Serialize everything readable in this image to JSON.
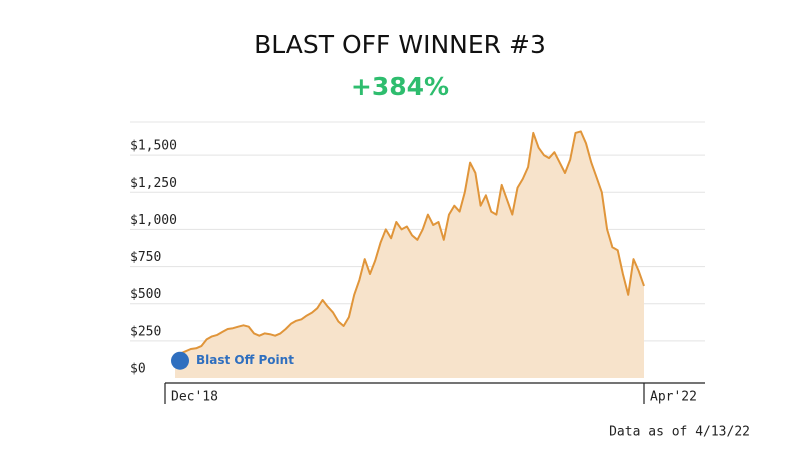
{
  "chart_data": {
    "type": "area",
    "title": "BLAST OFF WINNER #3",
    "subtitle": "+384%",
    "annotation": "Blast Off Point",
    "footnote": "Data as of 4/13/22",
    "categories": [
      "Dec'18",
      null,
      null,
      null,
      null,
      null,
      null,
      null,
      null,
      null,
      null,
      null,
      null,
      null,
      null,
      null,
      null,
      null,
      null,
      null,
      null,
      null,
      null,
      null,
      null,
      null,
      null,
      null,
      null,
      null,
      null,
      null,
      null,
      null,
      null,
      null,
      null,
      null,
      null,
      null,
      null,
      null,
      null,
      null,
      null,
      null,
      null,
      null,
      null,
      null,
      null,
      null,
      null,
      null,
      null,
      null,
      null,
      null,
      null,
      null,
      null,
      null,
      null,
      null,
      null,
      null,
      null,
      null,
      null,
      null,
      null,
      null,
      null,
      null,
      null,
      null,
      null,
      null,
      null,
      null,
      null,
      null,
      null,
      null,
      null,
      null,
      null,
      null,
      null,
      "Apr'22"
    ],
    "values": [
      150,
      165,
      180,
      195,
      200,
      215,
      260,
      280,
      290,
      310,
      330,
      335,
      345,
      355,
      345,
      300,
      285,
      300,
      295,
      285,
      300,
      330,
      365,
      385,
      395,
      420,
      440,
      470,
      525,
      480,
      440,
      380,
      350,
      410,
      560,
      660,
      800,
      700,
      790,
      910,
      1000,
      940,
      1050,
      1000,
      1020,
      960,
      930,
      1000,
      1100,
      1030,
      1050,
      930,
      1100,
      1160,
      1120,
      1250,
      1450,
      1380,
      1160,
      1230,
      1120,
      1100,
      1300,
      1200,
      1100,
      1280,
      1340,
      1420,
      1650,
      1550,
      1500,
      1480,
      1520,
      1450,
      1380,
      1470,
      1650,
      1660,
      1580,
      1450,
      1350,
      1250,
      1000,
      880,
      860,
      700,
      560,
      800,
      720,
      620
    ],
    "color": "#e0953a",
    "fill_color": "#f7e3cb",
    "marker_color": "#2f6fbf",
    "ylim": [
      0,
      1750
    ],
    "yticks": [
      {
        "value": 0,
        "label": "$0"
      },
      {
        "value": 250,
        "label": "$250"
      },
      {
        "value": 500,
        "label": "$500"
      },
      {
        "value": 750,
        "label": "$750"
      },
      {
        "value": 1000,
        "label": "$1,000"
      },
      {
        "value": 1250,
        "label": "$1,250"
      },
      {
        "value": 1500,
        "label": "$1,500"
      }
    ],
    "grid": true
  }
}
